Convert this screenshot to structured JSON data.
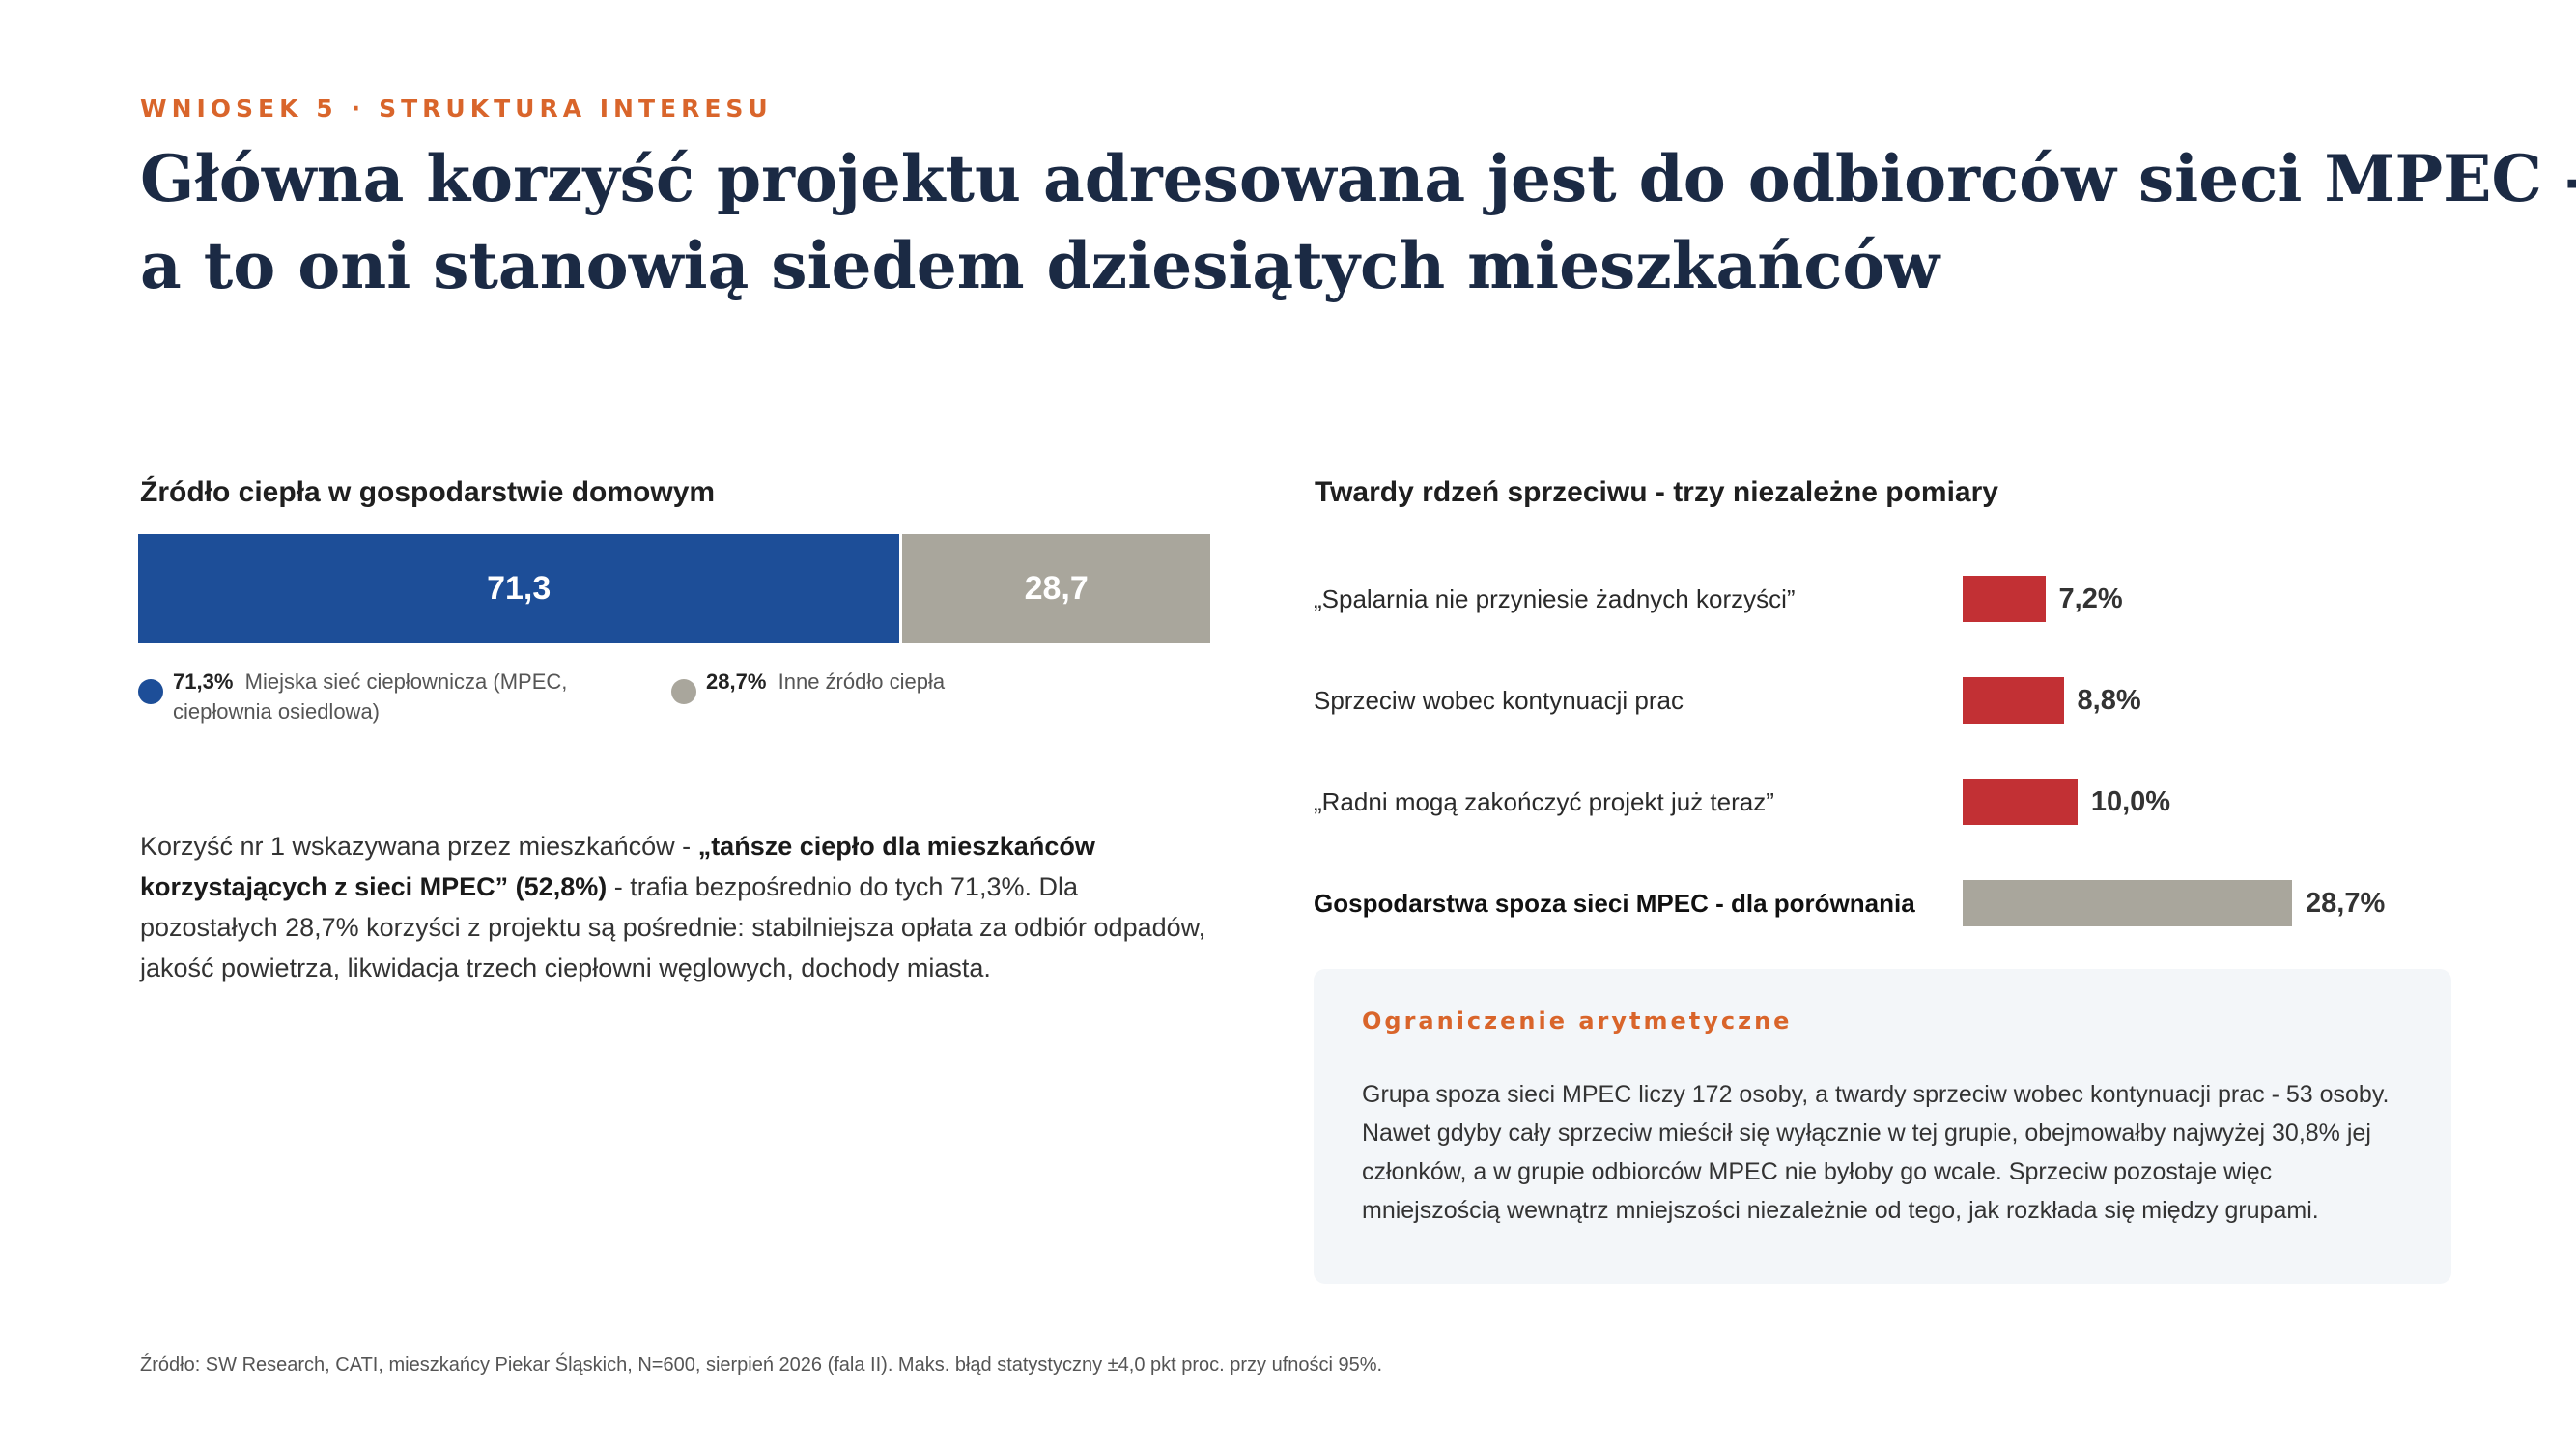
{
  "header": {
    "eyebrow_left": "WNIOSEK 5",
    "eyebrow_sep": "·",
    "eyebrow_right": "STRUKTURA INTERESU",
    "title_line1": "Główna korzyść projektu adresowana jest do odbiorców sieci MPEC -",
    "title_line2": "a to oni stanowią siedem dziesiątych mieszkańców"
  },
  "chart_data": [
    {
      "type": "bar",
      "orientation": "horizontal-stacked",
      "title": "Źródło ciepła w gospodarstwie domowym",
      "series": [
        {
          "name": "Miejska sieć ciepłownicza (MPEC, ciepłownia osiedlowa)",
          "value": 71.3,
          "label": "71,3",
          "legend_value": "71,3%",
          "color": "#1d4e98"
        },
        {
          "name": "Inne źródło ciepła",
          "value": 28.7,
          "label": "28,7",
          "legend_value": "28,7%",
          "color": "#a9a69c"
        }
      ],
      "legend_placement": "bottom"
    },
    {
      "type": "bar",
      "orientation": "horizontal",
      "title": "Twardy rdzeń sprzeciwu - trzy niezależne pomiary",
      "categories": [
        "„Spalarnia nie przyniesie żadnych korzyści”",
        "Sprzeciw wobec kontynuacji prac",
        "„Radni mogą zakończyć projekt już teraz”",
        "Gospodarstwa spoza sieci MPEC - dla porównania"
      ],
      "values": [
        7.2,
        8.8,
        10.0,
        28.7
      ],
      "value_labels": [
        "7,2%",
        "8,8%",
        "10,0%",
        "28,7%"
      ],
      "colors": [
        "#c23034",
        "#c23034",
        "#c23034",
        "#a9a69c"
      ],
      "bold_category": [
        false,
        false,
        false,
        true
      ],
      "xlim": [
        0,
        40
      ]
    }
  ],
  "paragraph": {
    "part1": "Korzyść nr 1 wskazywana przez mieszkańców - ",
    "bold": "„tańsze ciepło dla mieszkańców korzystających z sieci MPEC” (52,8%)",
    "part2": " - trafia bezpośrednio do tych 71,3%. Dla pozostałych 28,7% korzyści z projektu są pośrednie: stabilniejsza opłata za odbiór odpadów, jakość powietrza, likwidacja trzech ciepłowni węglowych, dochody miasta."
  },
  "note": {
    "title": "Ograniczenie arytmetyczne",
    "body": "Grupa spoza sieci MPEC liczy 172 osoby, a twardy sprzeciw wobec kontynuacji prac - 53 osoby. Nawet gdyby cały sprzeciw mieścił się wyłącznie w tej grupie, obejmowałby najwyżej 30,8% jej członków, a w grupie odbiorców MPEC nie byłoby go wcale. Sprzeciw pozostaje więc mniejszością wewnątrz mniejszości niezależnie od tego, jak rozkłada się między grupami."
  },
  "source": "Źródło: SW Research, CATI, mieszkańcy Piekar Śląskich, N=600, sierpień 2026 (fala II). Maks. błąd statystyczny ±4,0 pkt proc. przy ufności 95%."
}
